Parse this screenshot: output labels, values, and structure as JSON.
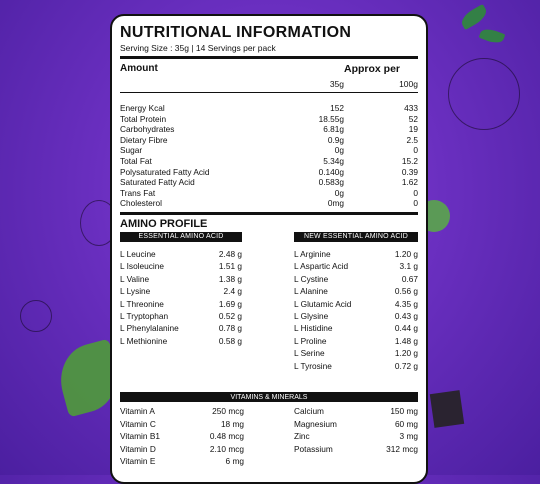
{
  "title": "NUTRITIONAL INFORMATION",
  "serving": "Serving Size : 35g  | 14 Servings per pack",
  "header": {
    "amount": "Amount",
    "approx": "Approx per",
    "col1": "35g",
    "col2": "100g"
  },
  "nutrition": [
    {
      "name": "Energy Kcal",
      "v1": "152",
      "v2": "433"
    },
    {
      "name": "Total Protein",
      "v1": "18.55g",
      "v2": "52"
    },
    {
      "name": "Carbohydrates",
      "v1": "6.81g",
      "v2": "19"
    },
    {
      "name": "Dietary Fibre",
      "v1": "0.9g",
      "v2": "2.5"
    },
    {
      "name": "Sugar",
      "v1": "0g",
      "v2": "0"
    },
    {
      "name": "Total Fat",
      "v1": "5.34g",
      "v2": "15.2"
    },
    {
      "name": "Polysaturated Fatty Acid",
      "v1": "0.140g",
      "v2": "0.39"
    },
    {
      "name": "Saturated Fatty Acid",
      "v1": "0.583g",
      "v2": "1.62"
    },
    {
      "name": "Trans Fat",
      "v1": "0g",
      "v2": "0"
    },
    {
      "name": "Cholesterol",
      "v1": "0mg",
      "v2": "0"
    }
  ],
  "amino": {
    "title": "AMINO PROFILE",
    "essential_label": "ESSENTIAL AMINO ACID",
    "new_label": "NEW ESSENTIAL AMINO ACID",
    "essential": [
      {
        "name": "L Leucine",
        "val": "2.48 g"
      },
      {
        "name": "L Isoleucine",
        "val": "1.51 g"
      },
      {
        "name": "L Valine",
        "val": "1.38 g"
      },
      {
        "name": "L Lysine",
        "val": "2.4 g"
      },
      {
        "name": "L Threonine",
        "val": "1.69 g"
      },
      {
        "name": "L Tryptophan",
        "val": "0.52 g"
      },
      {
        "name": "L Phenylalanine",
        "val": "0.78 g"
      },
      {
        "name": "L Methionine",
        "val": "0.58 g"
      }
    ],
    "new_essential": [
      {
        "name": "L Arginine",
        "val": "1.20 g"
      },
      {
        "name": "L Aspartic Acid",
        "val": "3.1 g"
      },
      {
        "name": "L Cystine",
        "val": "0.67"
      },
      {
        "name": "L Alanine",
        "val": "0.56 g"
      },
      {
        "name": "L Glutamic Acid",
        "val": "4.35 g"
      },
      {
        "name": "L Glysine",
        "val": "0.43 g"
      },
      {
        "name": "L Histidine",
        "val": "0.44 g"
      },
      {
        "name": "L Proline",
        "val": "1.48 g"
      },
      {
        "name": "L Serine",
        "val": "1.20 g"
      },
      {
        "name": "L Tyrosine",
        "val": "0.72 g"
      }
    ]
  },
  "vitamins": {
    "label": "VITAMINS & MINERALS",
    "left": [
      {
        "name": "Vitamin A",
        "val": "250 mcg"
      },
      {
        "name": "Vitamin C",
        "val": "18 mg"
      },
      {
        "name": "Vitamin B1",
        "val": "0.48 mcg"
      },
      {
        "name": "Vitamin D",
        "val": "2.10 mcg"
      },
      {
        "name": "Vitamin E",
        "val": "6 mg"
      }
    ],
    "right": [
      {
        "name": "Calcium",
        "val": "150 mg"
      },
      {
        "name": "Magnesium",
        "val": "60 mg"
      },
      {
        "name": "Zinc",
        "val": "3 mg"
      },
      {
        "name": "Potassium",
        "val": "312 mcg"
      }
    ]
  }
}
